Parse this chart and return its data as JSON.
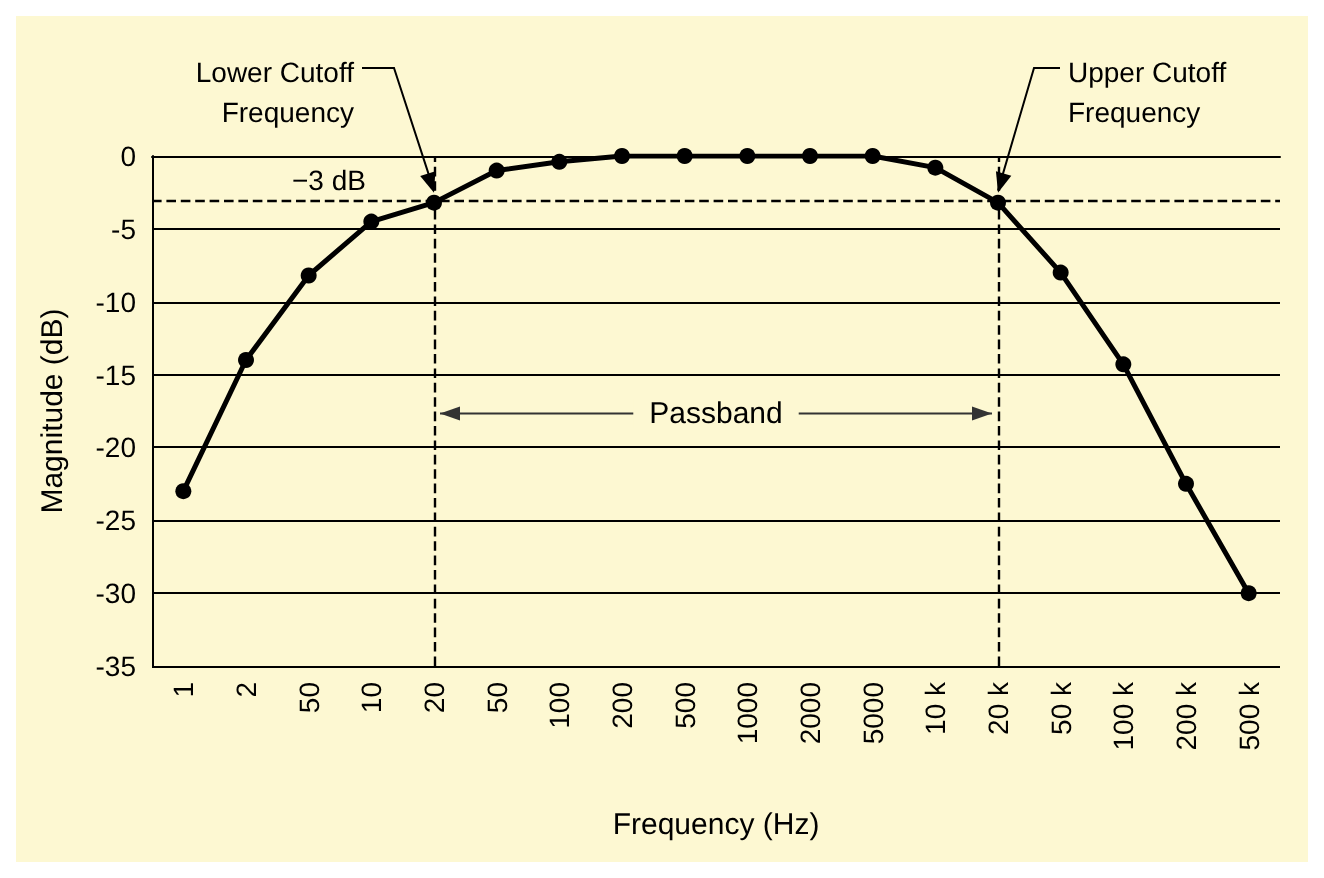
{
  "chart_data": {
    "type": "line",
    "xlabel": "Frequency (Hz)",
    "ylabel": "Magnitude (dB)",
    "categories": [
      "1",
      "2",
      "50",
      "10",
      "20",
      "50",
      "100",
      "200",
      "500",
      "1000",
      "2000",
      "5000",
      "10 k",
      "20 k",
      "50 k",
      "100 k",
      "200 k",
      "500 k"
    ],
    "series": [
      {
        "color": "#000000",
        "values": [
          -23,
          -14,
          -8.2,
          -4.5,
          -3.2,
          -1,
          -0.4,
          0,
          0,
          0,
          0,
          0,
          -0.8,
          -3.2,
          -8,
          -14.3,
          -22.5,
          -30
        ]
      }
    ],
    "ylim": [
      -35,
      0
    ],
    "yticks": [
      -35,
      -30,
      -25,
      -20,
      -15,
      -10,
      -5,
      0
    ],
    "grid": "y",
    "marker": "circle",
    "line_style": "solid",
    "ref_lines": [
      {
        "axis": "y",
        "value": -3,
        "label": "−3 dB",
        "line_style": "dashed"
      },
      {
        "axis": "x",
        "value": "20",
        "line_style": "dashed"
      },
      {
        "axis": "x",
        "value": "20 k",
        "line_style": "dashed"
      }
    ],
    "annotations": [
      {
        "text": "Lower Cutoff\nFrequency",
        "x": "20",
        "y": -3.2
      },
      {
        "text": "Upper Cutoff\nFrequency",
        "x": "20 k",
        "y": -3.2
      },
      "Passband"
    ]
  }
}
